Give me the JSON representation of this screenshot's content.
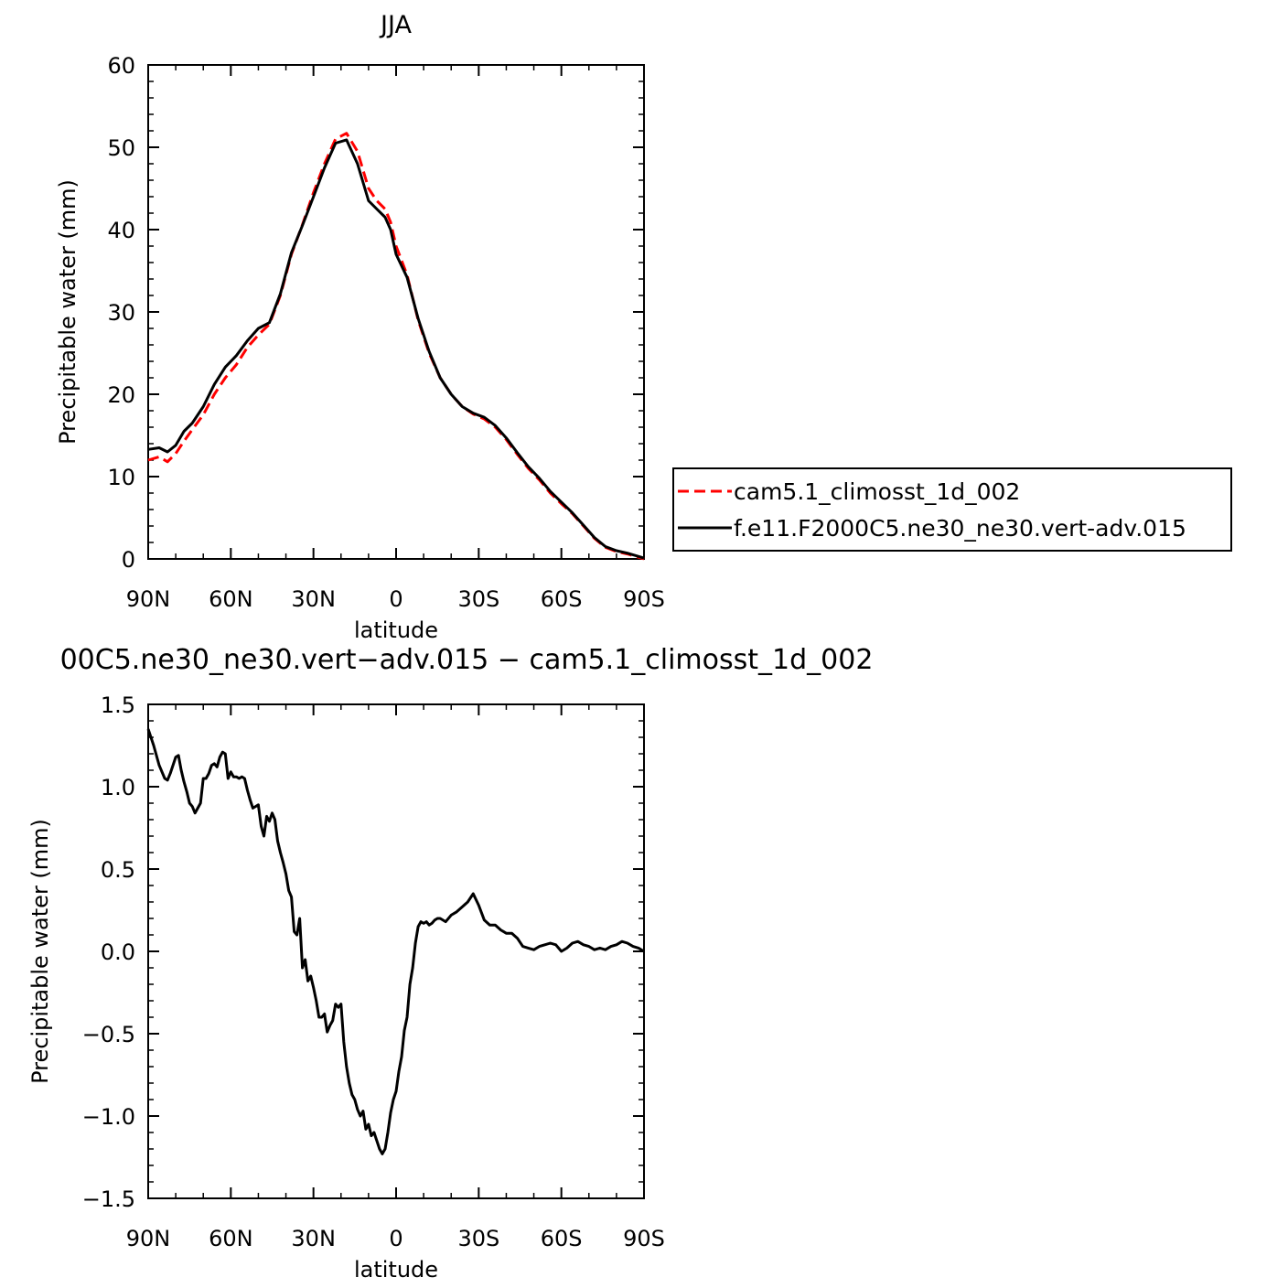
{
  "chart_data": [
    {
      "type": "line",
      "title": "JJA",
      "xlabel": "latitude",
      "ylabel": "Precipitable water (mm)",
      "xlim": [
        90,
        -90
      ],
      "ylim": [
        0,
        60
      ],
      "x_ticks": [
        90,
        60,
        30,
        0,
        -30,
        -60,
        -90
      ],
      "x_tick_labels": [
        "90N",
        "60N",
        "30N",
        "0",
        "30S",
        "60S",
        "90S"
      ],
      "y_ticks": [
        0,
        10,
        20,
        30,
        40,
        50,
        60
      ],
      "y_tick_labels": [
        "0",
        "10",
        "20",
        "30",
        "40",
        "50",
        "60"
      ],
      "legend_position": "right",
      "series": [
        {
          "name": "cam5.1_climosst_1d_002",
          "color": "#ff0000",
          "dash": "dashed",
          "x": [
            90,
            86,
            83,
            80,
            77,
            74,
            70,
            66,
            62,
            58,
            54,
            50,
            46,
            42,
            38,
            34,
            30,
            26,
            22,
            18,
            14,
            10,
            7,
            4,
            2,
            0,
            -4,
            -8,
            -12,
            -16,
            -20,
            -24,
            -28,
            -32,
            -36,
            -40,
            -44,
            -48,
            -52,
            -56,
            -60,
            -64,
            -68,
            -72,
            -76,
            -80,
            -84,
            -90
          ],
          "y": [
            12.0,
            12.4,
            11.8,
            12.8,
            14.3,
            15.7,
            17.5,
            20.0,
            22.0,
            23.6,
            25.7,
            27.2,
            28.5,
            32.0,
            37.0,
            40.6,
            44.5,
            48.0,
            51.0,
            51.7,
            49.5,
            45.0,
            43.5,
            42.5,
            40.9,
            38.0,
            34.5,
            29.0,
            25.0,
            22.0,
            20.0,
            18.5,
            17.6,
            17.0,
            16.0,
            14.5,
            12.7,
            11.0,
            9.6,
            8.0,
            6.7,
            5.5,
            4.0,
            2.5,
            1.4,
            0.9,
            0.6,
            0.0
          ]
        },
        {
          "name": "f.e11.F2000C5.ne30_ne30.vert-adv.015",
          "color": "#000000",
          "dash": "solid",
          "x": [
            90,
            86,
            83,
            80,
            77,
            74,
            70,
            66,
            62,
            58,
            54,
            50,
            46,
            42,
            38,
            34,
            30,
            26,
            22,
            18,
            14,
            10,
            7,
            4,
            2,
            0,
            -4,
            -8,
            -12,
            -16,
            -20,
            -24,
            -28,
            -32,
            -36,
            -40,
            -44,
            -48,
            -52,
            -56,
            -60,
            -64,
            -68,
            -72,
            -76,
            -80,
            -84,
            -90
          ],
          "y": [
            13.3,
            13.5,
            13.0,
            13.8,
            15.5,
            16.5,
            18.5,
            21.2,
            23.3,
            24.7,
            26.5,
            28.0,
            28.7,
            32.2,
            37.2,
            40.5,
            44.0,
            47.5,
            50.5,
            50.9,
            48.0,
            43.5,
            42.5,
            41.5,
            40.0,
            37.0,
            34.2,
            29.2,
            25.2,
            22.0,
            20.0,
            18.5,
            17.7,
            17.2,
            16.2,
            14.7,
            12.9,
            11.2,
            9.8,
            8.2,
            6.9,
            5.6,
            4.1,
            2.6,
            1.5,
            1.0,
            0.7,
            0.1
          ]
        }
      ]
    },
    {
      "type": "line",
      "title": "00C5.ne30_ne30.vert−adv.015 − cam5.1_climosst_1d_002",
      "xlabel": "latitude",
      "ylabel": "Precipitable water (mm)",
      "xlim": [
        90,
        -90
      ],
      "ylim": [
        -1.5,
        1.5
      ],
      "x_ticks": [
        90,
        60,
        30,
        0,
        -30,
        -60,
        -90
      ],
      "x_tick_labels": [
        "90N",
        "60N",
        "30N",
        "0",
        "30S",
        "60S",
        "90S"
      ],
      "y_ticks": [
        1.5,
        1.0,
        0.5,
        0.0,
        -0.5,
        -1.0,
        -1.5
      ],
      "y_tick_labels": [
        "1.5",
        "1.0",
        "0.5",
        "0.0",
        "−0.5",
        "−1.0",
        "−1.5"
      ],
      "series": [
        {
          "color": "#000000",
          "dash": "solid",
          "x": [
            90,
            88,
            86,
            84,
            83,
            82,
            80,
            79,
            78,
            77,
            76,
            75,
            74,
            73,
            72,
            71,
            70,
            69,
            68,
            67,
            66,
            65,
            64,
            63,
            62,
            61,
            60,
            59,
            58,
            57,
            56,
            55,
            54,
            53,
            52,
            51,
            50,
            49,
            48,
            47,
            46,
            45,
            44,
            43,
            42,
            41,
            40,
            39,
            38,
            37,
            36,
            35,
            34,
            33,
            32,
            31,
            30,
            29,
            28,
            27,
            26,
            25,
            24,
            23,
            22,
            21,
            20,
            19,
            18,
            17,
            16,
            15,
            14,
            13,
            12,
            11,
            10,
            9,
            8,
            7,
            6,
            5,
            4,
            3,
            2,
            1,
            0,
            -1,
            -2,
            -3,
            -4,
            -5,
            -6,
            -7,
            -8,
            -9,
            -10,
            -11,
            -12,
            -13,
            -14,
            -15,
            -16,
            -18,
            -20,
            -22,
            -24,
            -26,
            -28,
            -30,
            -32,
            -34,
            -36,
            -38,
            -40,
            -42,
            -44,
            -46,
            -48,
            -50,
            -52,
            -54,
            -56,
            -58,
            -60,
            -62,
            -64,
            -66,
            -68,
            -70,
            -72,
            -74,
            -76,
            -78,
            -80,
            -82,
            -84,
            -86,
            -88,
            -90
          ],
          "y": [
            1.35,
            1.25,
            1.13,
            1.05,
            1.04,
            1.08,
            1.18,
            1.19,
            1.1,
            1.03,
            0.97,
            0.9,
            0.88,
            0.84,
            0.87,
            0.9,
            1.05,
            1.05,
            1.08,
            1.13,
            1.14,
            1.12,
            1.18,
            1.21,
            1.2,
            1.05,
            1.09,
            1.06,
            1.06,
            1.05,
            1.06,
            1.05,
            0.98,
            0.92,
            0.87,
            0.88,
            0.89,
            0.76,
            0.7,
            0.82,
            0.79,
            0.84,
            0.8,
            0.67,
            0.6,
            0.54,
            0.47,
            0.37,
            0.33,
            0.12,
            0.1,
            0.2,
            -0.1,
            -0.05,
            -0.18,
            -0.15,
            -0.22,
            -0.3,
            -0.4,
            -0.4,
            -0.38,
            -0.49,
            -0.45,
            -0.42,
            -0.32,
            -0.34,
            -0.32,
            -0.55,
            -0.7,
            -0.8,
            -0.87,
            -0.9,
            -0.96,
            -1.0,
            -0.97,
            -1.08,
            -1.05,
            -1.12,
            -1.1,
            -1.15,
            -1.2,
            -1.23,
            -1.2,
            -1.1,
            -0.98,
            -0.9,
            -0.85,
            -0.73,
            -0.64,
            -0.48,
            -0.4,
            -0.2,
            -0.1,
            0.05,
            0.15,
            0.18,
            0.17,
            0.18,
            0.16,
            0.17,
            0.19,
            0.2,
            0.2,
            0.18,
            0.22,
            0.24,
            0.27,
            0.3,
            0.35,
            0.28,
            0.19,
            0.16,
            0.16,
            0.13,
            0.11,
            0.11,
            0.08,
            0.03,
            0.02,
            0.01,
            0.03,
            0.04,
            0.05,
            0.04,
            0.0,
            0.02,
            0.05,
            0.06,
            0.04,
            0.03,
            0.01,
            0.02,
            0.01,
            0.03,
            0.04,
            0.06,
            0.05,
            0.03,
            0.02,
            0.0
          ]
        }
      ]
    }
  ]
}
